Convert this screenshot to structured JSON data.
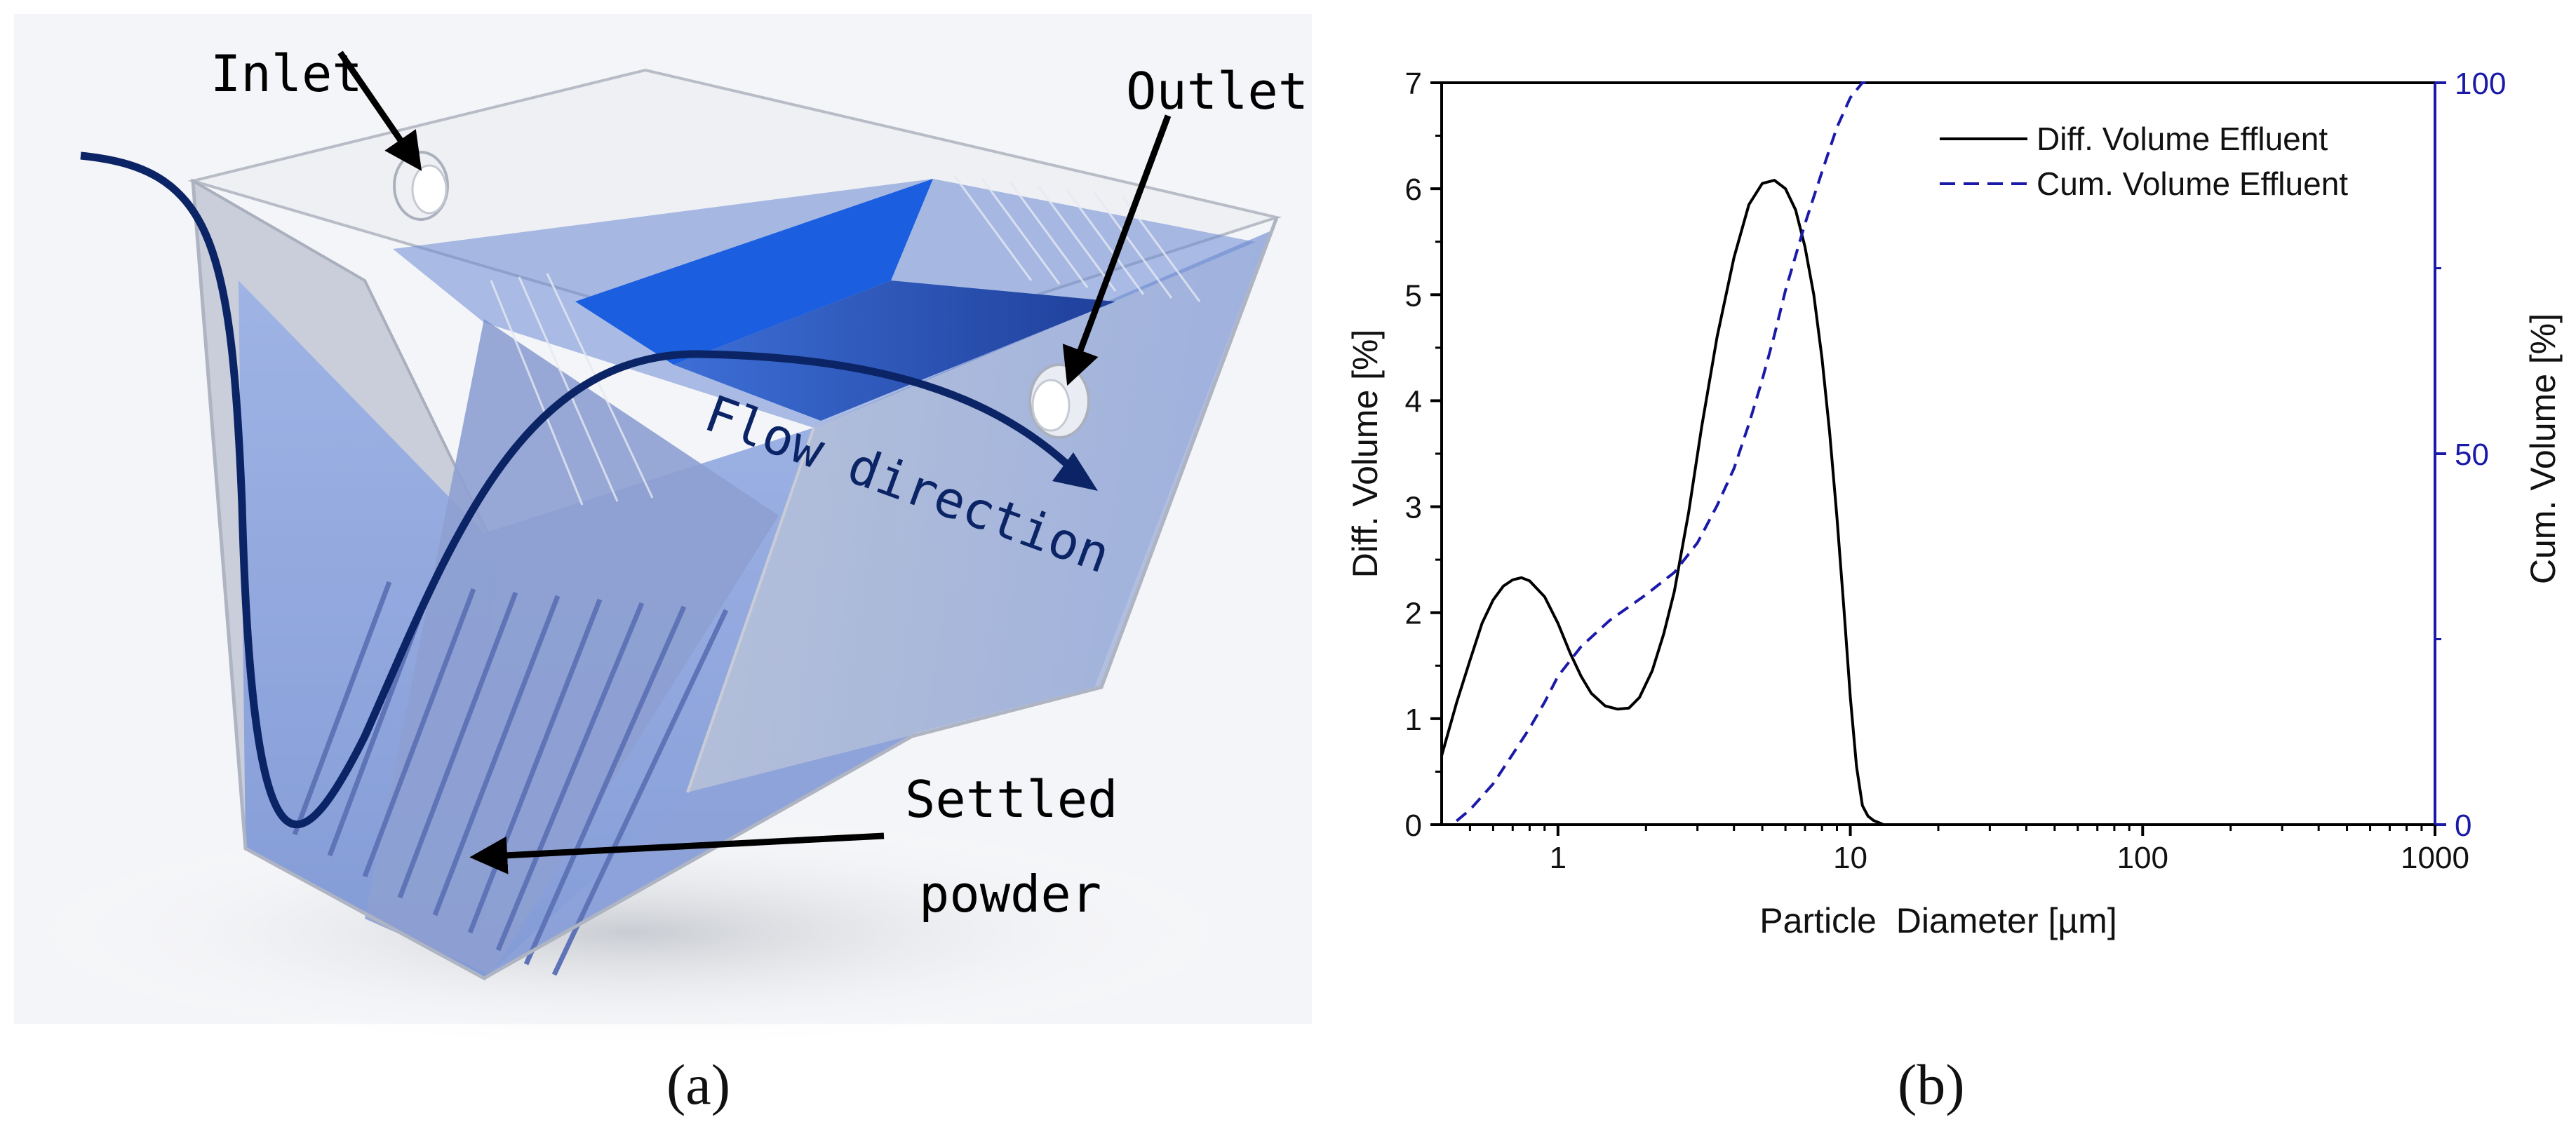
{
  "panel_a": {
    "label": "(a)",
    "annotations": {
      "inlet": "Inlet",
      "outlet": "Outlet",
      "flow": "Flow direction",
      "settled_line1": "Settled",
      "settled_line2": "powder"
    },
    "colors": {
      "water": "#6f8fd6",
      "flow_curve": "#0b2466",
      "plate_blue": "#1b5fe0",
      "tank_glass": "#d9dde6"
    }
  },
  "panel_b": {
    "label": "(b)",
    "colors": {
      "diff": "#000000",
      "cum": "#1a1aa8",
      "right_axis": "#1a1aa8"
    }
  },
  "chart_data": {
    "type": "line",
    "xlabel": "Particle  Diameter [µm]",
    "ylabel_left": "Diff. Volume [%]",
    "ylabel_right": "Cum. Volume [%]",
    "x_scale": "log",
    "xlim": [
      0.4,
      1000
    ],
    "ylim_left": [
      0,
      7
    ],
    "ylim_right": [
      0,
      100
    ],
    "x_ticks": [
      1,
      10,
      100,
      1000
    ],
    "x_tick_labels": [
      "1",
      "10",
      "100",
      "1000"
    ],
    "y_ticks_left": [
      0,
      1,
      2,
      3,
      4,
      5,
      6,
      7
    ],
    "y_tick_labels_left": [
      "0",
      "1",
      "2",
      "3",
      "4",
      "5",
      "6",
      "7"
    ],
    "y_ticks_right": [
      0,
      50,
      100
    ],
    "y_tick_labels_right": [
      "0",
      "50",
      "100"
    ],
    "legend_position": "top-right",
    "series": [
      {
        "name": "Diff. Volume Effluent",
        "axis": "left",
        "style": "solid",
        "x": [
          0.4,
          0.45,
          0.5,
          0.55,
          0.6,
          0.65,
          0.7,
          0.75,
          0.8,
          0.9,
          1.0,
          1.1,
          1.2,
          1.3,
          1.45,
          1.6,
          1.75,
          1.9,
          2.1,
          2.3,
          2.5,
          2.8,
          3.1,
          3.5,
          4.0,
          4.5,
          5.0,
          5.5,
          6.0,
          6.5,
          7.0,
          7.5,
          8.0,
          8.5,
          9.0,
          9.5,
          10.0,
          10.5,
          11.0,
          11.5,
          12.0,
          12.5,
          13.0
        ],
        "y": [
          0.65,
          1.15,
          1.55,
          1.9,
          2.12,
          2.25,
          2.31,
          2.33,
          2.3,
          2.15,
          1.9,
          1.62,
          1.4,
          1.24,
          1.12,
          1.09,
          1.1,
          1.2,
          1.45,
          1.8,
          2.2,
          2.95,
          3.75,
          4.6,
          5.35,
          5.85,
          6.05,
          6.08,
          6.0,
          5.8,
          5.45,
          5.0,
          4.4,
          3.7,
          2.9,
          2.05,
          1.2,
          0.55,
          0.18,
          0.08,
          0.04,
          0.02,
          0.0
        ]
      },
      {
        "name": "Cum. Volume Effluent",
        "axis": "right",
        "style": "dashed",
        "x": [
          0.45,
          0.5,
          0.6,
          0.7,
          0.8,
          0.9,
          1.0,
          1.2,
          1.5,
          2.0,
          2.5,
          3.0,
          3.5,
          4.0,
          4.5,
          5.0,
          5.5,
          6.0,
          7.0,
          8.0,
          9.0,
          10.0,
          11.0,
          12.0
        ],
        "y": [
          0.5,
          2.0,
          5.5,
          9.5,
          13.0,
          16.5,
          20.0,
          24.0,
          27.5,
          31.0,
          34.0,
          38.0,
          43.0,
          48.0,
          54.0,
          60.0,
          66.0,
          72.0,
          81.0,
          88.0,
          94.0,
          98.0,
          100.0,
          100.0
        ]
      }
    ]
  }
}
